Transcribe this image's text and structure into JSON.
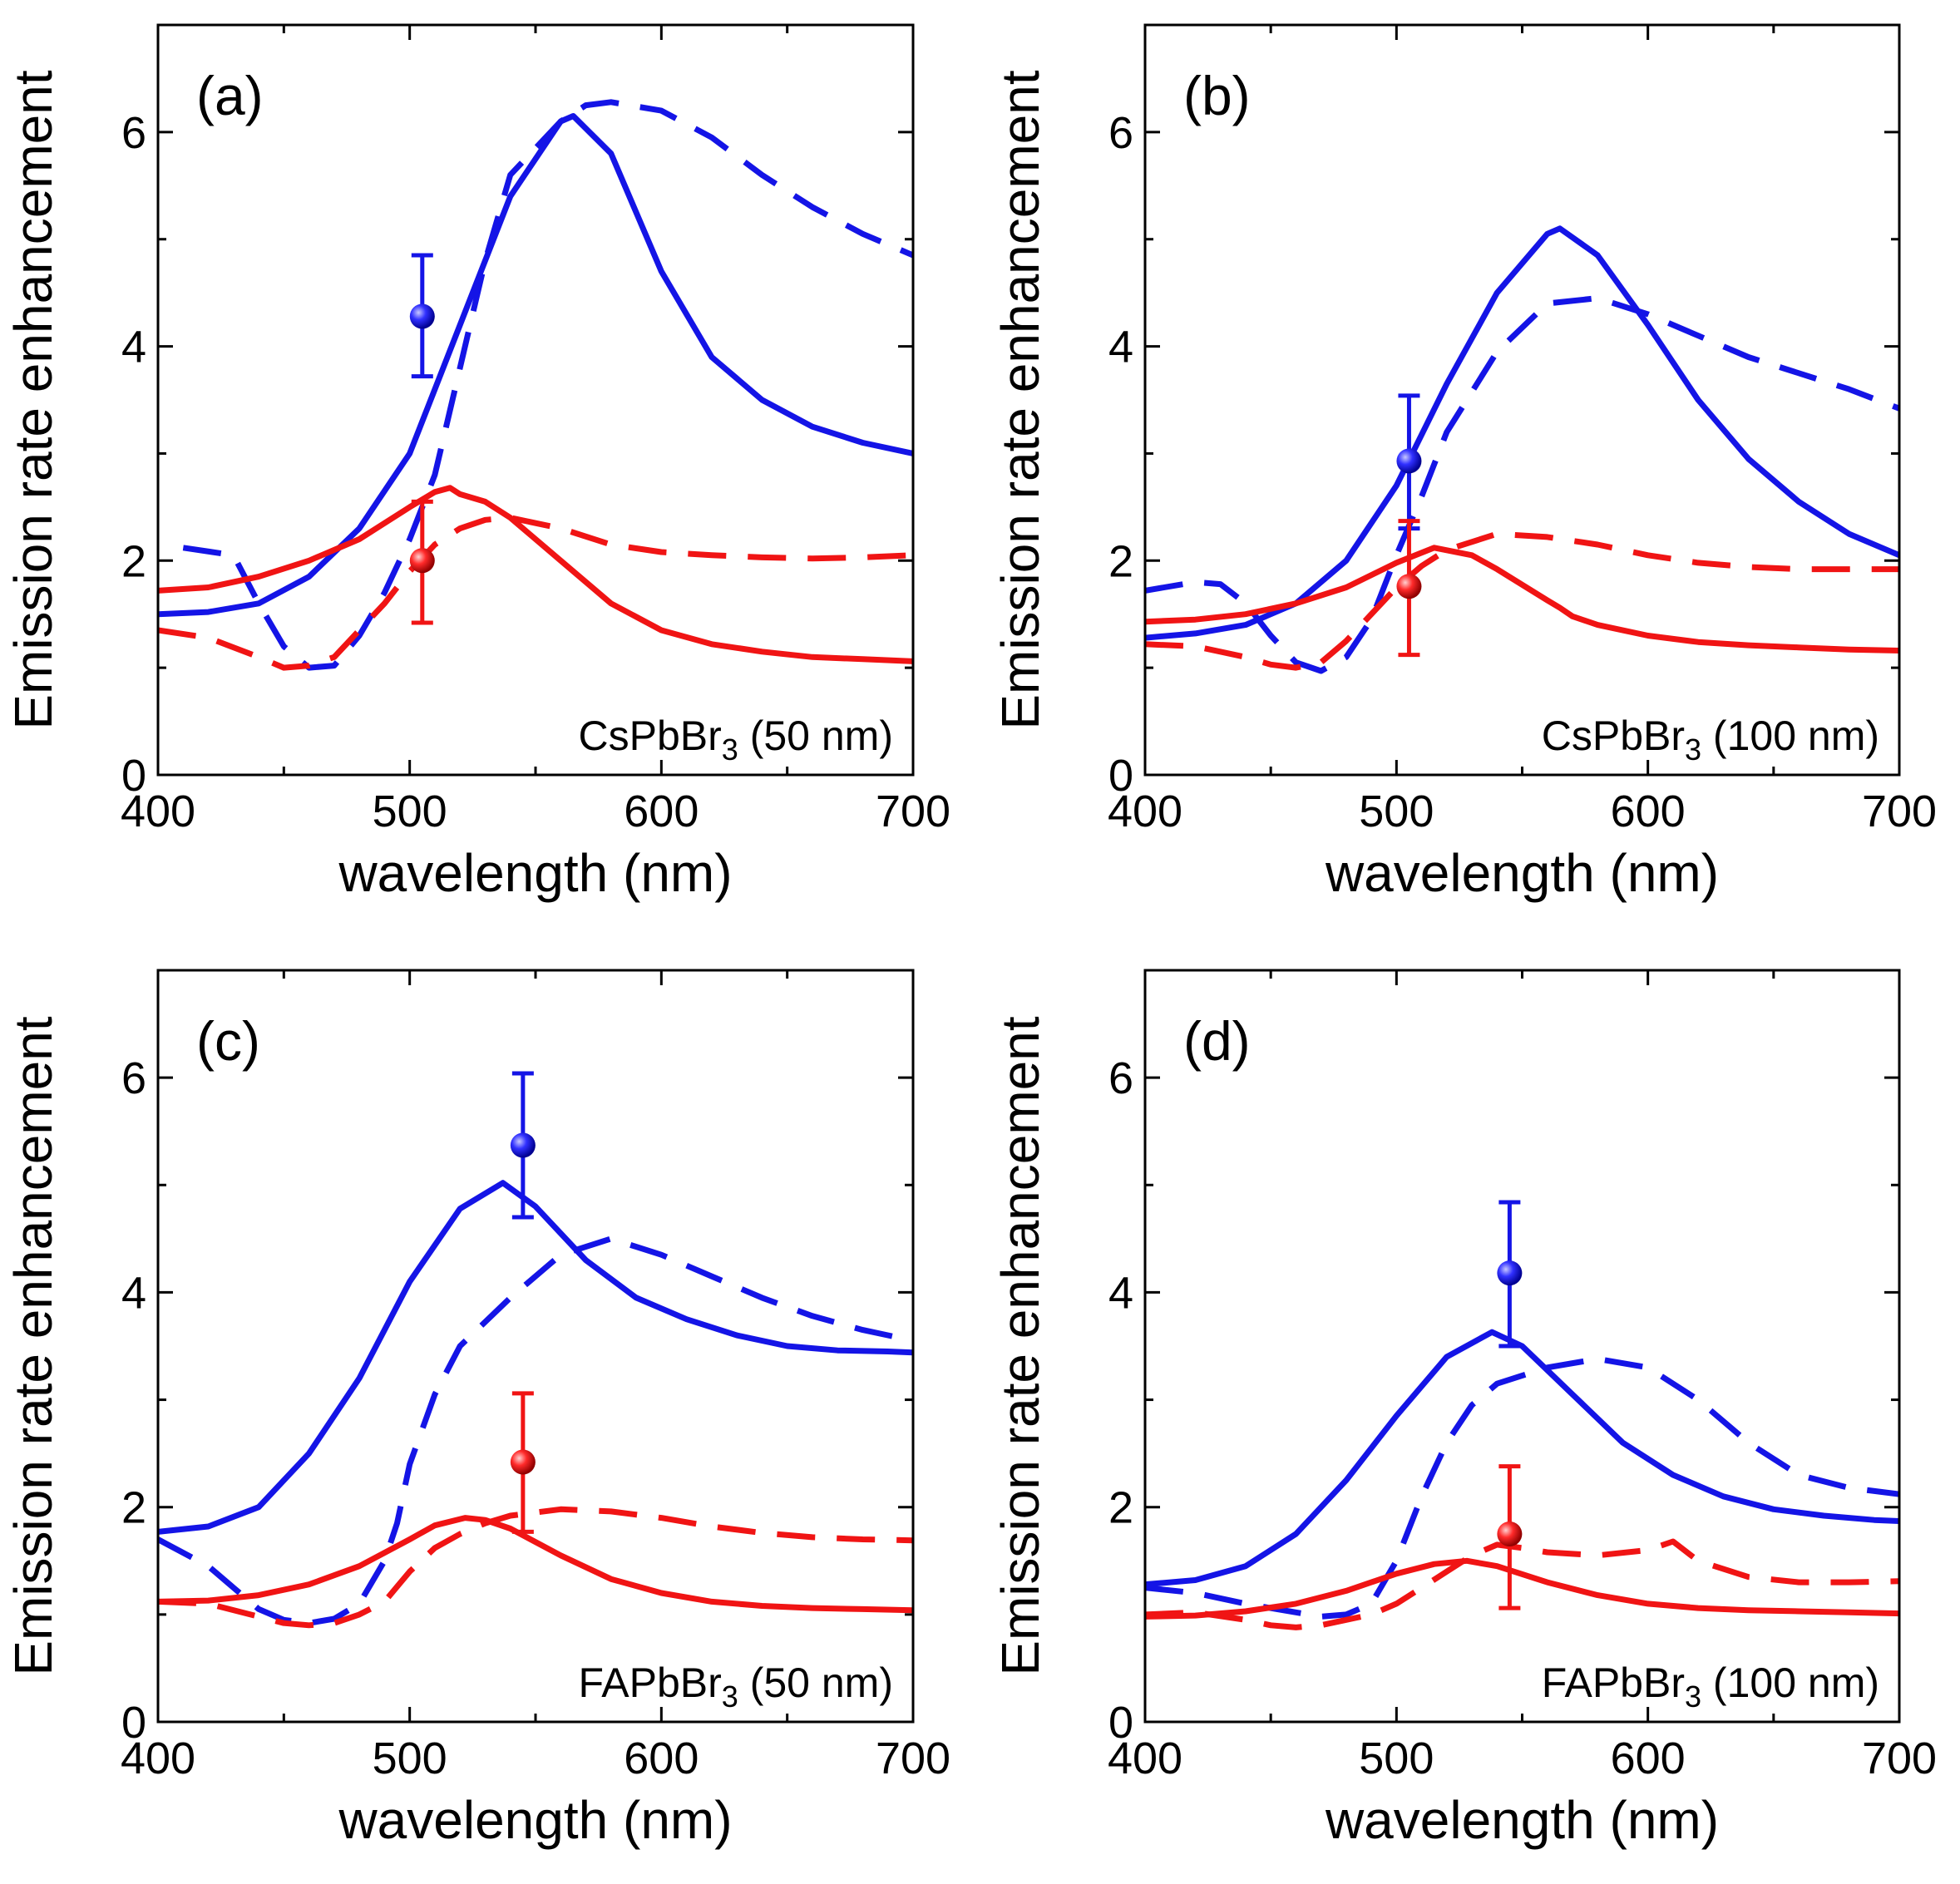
{
  "colors": {
    "blue": "#1414e6",
    "red": "#f01414",
    "axis": "#000000"
  },
  "chart_data": [
    {
      "type": "line",
      "panel_label": "(a)",
      "sample_label": {
        "main": "CsPbBr",
        "sub": "3",
        "rest": " (50 nm)"
      },
      "xlabel": "wavelength (nm)",
      "ylabel": "Emission rate enhancement",
      "xlim": [
        400,
        700
      ],
      "ylim": [
        0,
        7
      ],
      "xticks": [
        "400",
        "500",
        "600",
        "700"
      ],
      "yticks": [
        "0",
        "2",
        "4",
        "6"
      ],
      "series": [
        {
          "name": "blue solid",
          "color": "blue",
          "dash": false,
          "x": [
            400,
            420,
            440,
            460,
            480,
            500,
            520,
            540,
            560,
            565,
            580,
            600,
            620,
            640,
            660,
            680,
            700
          ],
          "y": [
            1.5,
            1.52,
            1.6,
            1.85,
            2.3,
            3.0,
            4.2,
            5.4,
            6.1,
            6.15,
            5.8,
            4.7,
            3.9,
            3.5,
            3.25,
            3.1,
            3.0
          ]
        },
        {
          "name": "blue dashed",
          "color": "blue",
          "dash": true,
          "x": [
            410,
            430,
            440,
            450,
            460,
            470,
            480,
            490,
            500,
            510,
            520,
            530,
            540,
            560,
            570,
            580,
            600,
            620,
            640,
            660,
            680,
            700
          ],
          "y": [
            2.12,
            2.05,
            1.6,
            1.2,
            1.0,
            1.02,
            1.3,
            1.7,
            2.2,
            2.8,
            3.8,
            4.8,
            5.6,
            6.1,
            6.25,
            6.28,
            6.2,
            5.95,
            5.6,
            5.3,
            5.05,
            4.85
          ]
        },
        {
          "name": "red solid",
          "color": "red",
          "dash": false,
          "x": [
            400,
            420,
            440,
            460,
            480,
            500,
            510,
            516,
            520,
            530,
            540,
            560,
            580,
            600,
            620,
            640,
            660,
            680,
            700
          ],
          "y": [
            1.72,
            1.75,
            1.85,
            2.0,
            2.2,
            2.5,
            2.64,
            2.68,
            2.62,
            2.55,
            2.4,
            2.0,
            1.6,
            1.35,
            1.22,
            1.15,
            1.1,
            1.08,
            1.06
          ]
        },
        {
          "name": "red dashed",
          "color": "red",
          "dash": true,
          "x": [
            400,
            420,
            440,
            450,
            460,
            470,
            480,
            490,
            500,
            510,
            520,
            530,
            540,
            560,
            580,
            600,
            620,
            640,
            660,
            680,
            700
          ],
          "y": [
            1.35,
            1.28,
            1.1,
            1.0,
            1.02,
            1.1,
            1.35,
            1.6,
            1.9,
            2.15,
            2.3,
            2.38,
            2.4,
            2.3,
            2.15,
            2.08,
            2.05,
            2.03,
            2.02,
            2.03,
            2.05
          ]
        }
      ],
      "points": [
        {
          "color": "blue",
          "x": 505,
          "y": 4.28,
          "err_low": 3.72,
          "err_high": 4.85
        },
        {
          "color": "red",
          "x": 505,
          "y": 2.0,
          "err_low": 1.42,
          "err_high": 2.55
        }
      ]
    },
    {
      "type": "line",
      "panel_label": "(b)",
      "sample_label": {
        "main": "CsPbBr",
        "sub": "3",
        "rest": " (100 nm)"
      },
      "xlabel": "wavelength (nm)",
      "ylabel": "Emission rate enhancement",
      "xlim": [
        400,
        700
      ],
      "ylim": [
        0,
        7
      ],
      "xticks": [
        "400",
        "500",
        "600",
        "700"
      ],
      "yticks": [
        "0",
        "2",
        "4",
        "6"
      ],
      "series": [
        {
          "name": "blue solid",
          "color": "blue",
          "dash": false,
          "x": [
            400,
            420,
            440,
            460,
            480,
            500,
            520,
            540,
            560,
            565,
            580,
            600,
            620,
            640,
            660,
            680,
            700
          ],
          "y": [
            1.28,
            1.32,
            1.4,
            1.6,
            2.0,
            2.7,
            3.65,
            4.5,
            5.05,
            5.1,
            4.85,
            4.2,
            3.5,
            2.95,
            2.55,
            2.25,
            2.05
          ]
        },
        {
          "name": "blue dashed",
          "color": "blue",
          "dash": true,
          "x": [
            400,
            420,
            430,
            440,
            450,
            460,
            470,
            480,
            490,
            500,
            510,
            520,
            540,
            560,
            580,
            600,
            620,
            640,
            660,
            680,
            700
          ],
          "y": [
            1.72,
            1.8,
            1.78,
            1.6,
            1.3,
            1.05,
            0.97,
            1.1,
            1.45,
            2.05,
            2.6,
            3.2,
            3.95,
            4.4,
            4.45,
            4.3,
            4.1,
            3.9,
            3.75,
            3.6,
            3.42
          ]
        },
        {
          "name": "red solid",
          "color": "red",
          "dash": false,
          "x": [
            400,
            420,
            440,
            460,
            480,
            500,
            515,
            530,
            540,
            560,
            565,
            570,
            580,
            600,
            620,
            640,
            660,
            680,
            700
          ],
          "y": [
            1.43,
            1.45,
            1.5,
            1.6,
            1.75,
            1.98,
            2.12,
            2.05,
            1.92,
            1.63,
            1.56,
            1.48,
            1.4,
            1.3,
            1.24,
            1.21,
            1.19,
            1.17,
            1.16
          ]
        },
        {
          "name": "red dashed",
          "color": "red",
          "dash": true,
          "x": [
            400,
            420,
            440,
            450,
            460,
            470,
            480,
            490,
            500,
            510,
            520,
            540,
            560,
            580,
            600,
            620,
            640,
            660,
            680,
            700
          ],
          "y": [
            1.22,
            1.2,
            1.1,
            1.03,
            1.0,
            1.05,
            1.25,
            1.5,
            1.75,
            1.95,
            2.1,
            2.25,
            2.22,
            2.15,
            2.05,
            1.98,
            1.94,
            1.92,
            1.92,
            1.92
          ]
        }
      ],
      "points": [
        {
          "color": "blue",
          "x": 505,
          "y": 2.93,
          "err_low": 2.3,
          "err_high": 3.54
        },
        {
          "color": "red",
          "x": 505,
          "y": 1.76,
          "err_low": 1.12,
          "err_high": 2.37
        }
      ]
    },
    {
      "type": "line",
      "panel_label": "(c)",
      "sample_label": {
        "main": "FAPbBr",
        "sub": "3",
        "rest": " (50 nm)"
      },
      "xlabel": "wavelength (nm)",
      "ylabel": "Emission rate enhancement",
      "xlim": [
        400,
        700
      ],
      "ylim": [
        0,
        7
      ],
      "xticks": [
        "400",
        "500",
        "600",
        "700"
      ],
      "yticks": [
        "0",
        "2",
        "4",
        "6"
      ],
      "series": [
        {
          "name": "blue solid",
          "color": "blue",
          "dash": false,
          "x": [
            400,
            420,
            440,
            460,
            480,
            500,
            520,
            537,
            550,
            570,
            590,
            610,
            630,
            650,
            670,
            690,
            700
          ],
          "y": [
            1.77,
            1.82,
            2.0,
            2.5,
            3.2,
            4.1,
            4.78,
            5.02,
            4.8,
            4.3,
            3.95,
            3.75,
            3.6,
            3.5,
            3.46,
            3.45,
            3.44
          ]
        },
        {
          "name": "blue dashed",
          "color": "blue",
          "dash": true,
          "x": [
            400,
            420,
            430,
            440,
            450,
            460,
            470,
            480,
            490,
            495,
            500,
            510,
            520,
            540,
            560,
            580,
            600,
            620,
            640,
            660,
            680,
            700
          ],
          "y": [
            1.7,
            1.45,
            1.25,
            1.05,
            0.95,
            0.92,
            0.96,
            1.1,
            1.5,
            1.85,
            2.4,
            3.05,
            3.5,
            3.95,
            4.35,
            4.5,
            4.35,
            4.15,
            3.95,
            3.78,
            3.65,
            3.55
          ]
        },
        {
          "name": "red solid",
          "color": "red",
          "dash": false,
          "x": [
            400,
            420,
            440,
            460,
            480,
            500,
            510,
            522,
            530,
            540,
            560,
            580,
            600,
            620,
            640,
            660,
            680,
            700
          ],
          "y": [
            1.12,
            1.13,
            1.18,
            1.28,
            1.45,
            1.7,
            1.83,
            1.9,
            1.88,
            1.8,
            1.55,
            1.33,
            1.2,
            1.12,
            1.08,
            1.06,
            1.05,
            1.04
          ]
        },
        {
          "name": "red dashed",
          "color": "red",
          "dash": true,
          "x": [
            400,
            420,
            440,
            450,
            460,
            470,
            480,
            490,
            500,
            510,
            520,
            530,
            540,
            560,
            580,
            600,
            620,
            640,
            660,
            680,
            700
          ],
          "y": [
            1.12,
            1.1,
            0.98,
            0.92,
            0.9,
            0.92,
            1.0,
            1.12,
            1.4,
            1.62,
            1.75,
            1.85,
            1.92,
            1.98,
            1.96,
            1.9,
            1.82,
            1.76,
            1.72,
            1.7,
            1.69
          ]
        }
      ],
      "points": [
        {
          "color": "blue",
          "x": 545,
          "y": 5.37,
          "err_low": 4.7,
          "err_high": 6.04
        },
        {
          "color": "red",
          "x": 545,
          "y": 2.42,
          "err_low": 1.77,
          "err_high": 3.06
        }
      ]
    },
    {
      "type": "line",
      "panel_label": "(d)",
      "sample_label": {
        "main": "FAPbBr",
        "sub": "3",
        "rest": " (100 nm)"
      },
      "xlabel": "wavelength (nm)",
      "ylabel": "Emission rate enhancement",
      "xlim": [
        400,
        700
      ],
      "ylim": [
        0,
        7
      ],
      "xticks": [
        "400",
        "500",
        "600",
        "700"
      ],
      "yticks": [
        "0",
        "2",
        "4",
        "6"
      ],
      "series": [
        {
          "name": "blue solid",
          "color": "blue",
          "dash": false,
          "x": [
            400,
            420,
            440,
            460,
            480,
            500,
            520,
            538,
            550,
            570,
            590,
            610,
            630,
            650,
            670,
            690,
            700
          ],
          "y": [
            1.28,
            1.32,
            1.45,
            1.75,
            2.25,
            2.85,
            3.4,
            3.63,
            3.5,
            3.05,
            2.6,
            2.3,
            2.1,
            1.98,
            1.92,
            1.88,
            1.87
          ]
        },
        {
          "name": "blue dashed",
          "color": "blue",
          "dash": true,
          "x": [
            400,
            420,
            440,
            460,
            470,
            480,
            490,
            500,
            510,
            520,
            530,
            540,
            560,
            580,
            600,
            620,
            640,
            660,
            680,
            700
          ],
          "y": [
            1.25,
            1.2,
            1.1,
            1.02,
            0.98,
            1.0,
            1.1,
            1.5,
            2.1,
            2.6,
            2.95,
            3.15,
            3.3,
            3.38,
            3.3,
            3.0,
            2.6,
            2.3,
            2.18,
            2.12
          ]
        },
        {
          "name": "red solid",
          "color": "red",
          "dash": false,
          "x": [
            400,
            420,
            440,
            460,
            480,
            500,
            515,
            528,
            540,
            560,
            580,
            600,
            620,
            640,
            660,
            680,
            700
          ],
          "y": [
            0.98,
            0.99,
            1.03,
            1.1,
            1.22,
            1.38,
            1.47,
            1.5,
            1.45,
            1.3,
            1.18,
            1.1,
            1.06,
            1.04,
            1.03,
            1.02,
            1.01
          ]
        },
        {
          "name": "red dashed",
          "color": "red",
          "dash": true,
          "x": [
            400,
            420,
            440,
            450,
            460,
            470,
            480,
            490,
            500,
            510,
            520,
            530,
            540,
            550,
            560,
            580,
            600,
            610,
            620,
            640,
            660,
            680,
            700
          ],
          "y": [
            1.0,
            1.02,
            0.95,
            0.9,
            0.88,
            0.9,
            0.95,
            1.0,
            1.1,
            1.25,
            1.4,
            1.55,
            1.65,
            1.62,
            1.58,
            1.55,
            1.6,
            1.68,
            1.5,
            1.35,
            1.3,
            1.3,
            1.31
          ]
        }
      ],
      "points": [
        {
          "color": "blue",
          "x": 545,
          "y": 4.18,
          "err_low": 3.5,
          "err_high": 4.84
        },
        {
          "color": "red",
          "x": 545,
          "y": 1.75,
          "err_low": 1.06,
          "err_high": 2.38
        }
      ]
    }
  ]
}
